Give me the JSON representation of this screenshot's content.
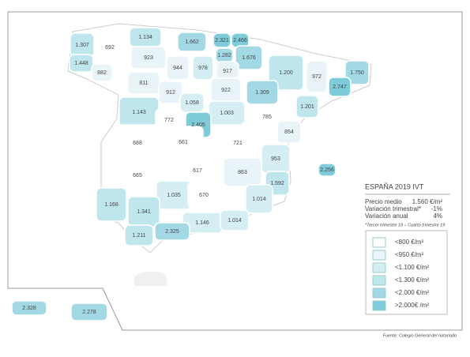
{
  "map": {
    "provinces": [
      "1.307",
      "692",
      "1.134",
      "1.662",
      "2.321",
      "2.466",
      "1.448",
      "923",
      "882",
      "944",
      "978",
      "1.282",
      "1.676",
      "917",
      "1.200",
      "972",
      "1.750",
      "811",
      "912",
      "922",
      "1.309",
      "2.747",
      "1.058",
      "1.143",
      "1.003",
      "1.201",
      "772",
      "2.405",
      "785",
      "854",
      "688",
      "661",
      "721",
      "953",
      "2.256",
      "665",
      "617",
      "863",
      "1.592",
      "1.035",
      "670",
      "1.014",
      "1.168",
      "1.341",
      "1.146",
      "1.014",
      "1.211",
      "2.325",
      "2.328",
      "2.278"
    ],
    "info": {
      "title": "ESPAÑA 2019 IVT",
      "rows": [
        [
          "Precio medio",
          "1.560 €/m²"
        ],
        [
          "Variación trimestral*",
          "-1%"
        ],
        [
          "Variación anual",
          "4%"
        ]
      ],
      "note": "*Tercer trimestre 19 – Cuarto trimestre 19"
    },
    "legend": [
      "<800 €/m²",
      "<950 €/m²",
      "<1.100 €/m²",
      "<1.300 €/m²",
      "<2.000 €/m²",
      ">2.000€ /m²"
    ],
    "source": "Fuente: Colegio General del notariado"
  }
}
